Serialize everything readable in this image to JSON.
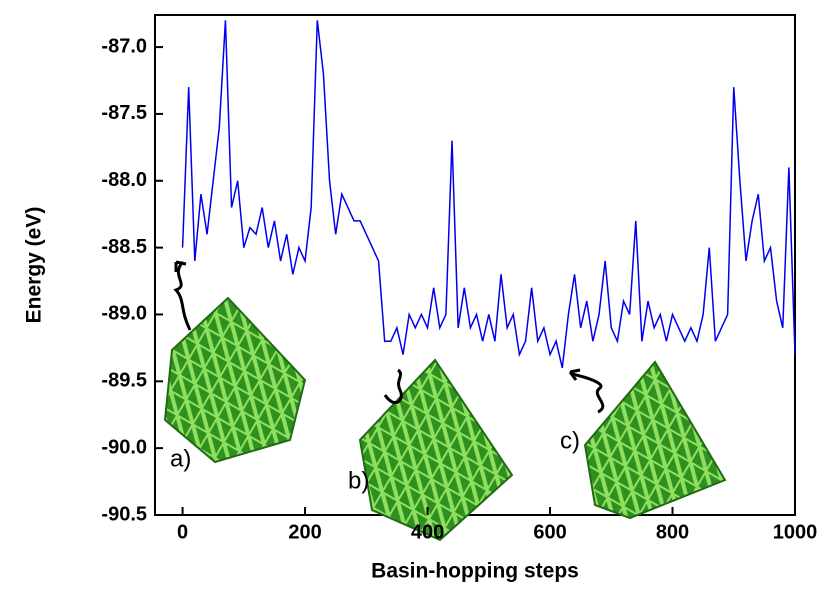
{
  "chart_data": {
    "type": "line",
    "x_label": "Basin-hopping steps",
    "y_label": "Energy (eV)",
    "x": [
      0,
      10,
      20,
      30,
      40,
      50,
      60,
      70,
      80,
      90,
      100,
      110,
      120,
      130,
      140,
      150,
      160,
      170,
      180,
      190,
      200,
      210,
      220,
      230,
      240,
      250,
      260,
      270,
      280,
      290,
      300,
      310,
      320,
      330,
      340,
      350,
      360,
      370,
      380,
      390,
      400,
      410,
      420,
      430,
      440,
      450,
      460,
      470,
      480,
      490,
      500,
      510,
      520,
      530,
      540,
      550,
      560,
      570,
      580,
      590,
      600,
      610,
      620,
      630,
      640,
      650,
      660,
      670,
      680,
      690,
      700,
      710,
      720,
      730,
      740,
      750,
      760,
      770,
      780,
      790,
      800,
      810,
      820,
      830,
      840,
      850,
      860,
      870,
      880,
      890,
      900,
      910,
      920,
      930,
      940,
      950,
      960,
      970,
      980,
      990,
      1000
    ],
    "series": [
      {
        "color": "#0000ee",
        "values": [
          -88.5,
          -87.3,
          -88.6,
          -88.1,
          -88.4,
          -88.0,
          -87.6,
          -86.8,
          -88.2,
          -88.0,
          -88.5,
          -88.35,
          -88.4,
          -88.2,
          -88.5,
          -88.3,
          -88.6,
          -88.4,
          -88.7,
          -88.5,
          -88.6,
          -88.2,
          -86.8,
          -87.2,
          -88.0,
          -88.4,
          -88.1,
          -88.2,
          -88.3,
          -88.3,
          -88.4,
          -88.5,
          -88.6,
          -89.2,
          -89.2,
          -89.1,
          -89.3,
          -89.0,
          -89.1,
          -89.0,
          -89.1,
          -88.8,
          -89.1,
          -89.0,
          -87.7,
          -89.1,
          -88.8,
          -89.1,
          -89.0,
          -89.2,
          -89.0,
          -89.2,
          -88.7,
          -89.1,
          -89.0,
          -89.3,
          -89.2,
          -88.8,
          -89.2,
          -89.1,
          -89.3,
          -89.2,
          -89.4,
          -89.0,
          -88.7,
          -89.1,
          -88.9,
          -89.2,
          -89.0,
          -88.6,
          -89.1,
          -89.2,
          -88.9,
          -89.0,
          -88.3,
          -89.2,
          -88.9,
          -89.1,
          -89.0,
          -89.2,
          -89.0,
          -89.1,
          -89.2,
          -89.1,
          -89.2,
          -89.0,
          -88.5,
          -89.2,
          -89.1,
          -89.0,
          -87.3,
          -88.0,
          -88.6,
          -88.3,
          -88.1,
          -88.6,
          -88.5,
          -88.9,
          -89.1,
          -87.9,
          -89.3
        ]
      }
    ],
    "xlim": [
      -45,
      1000
    ],
    "xticks": [
      0,
      200,
      400,
      600,
      800,
      1000
    ],
    "ylim": [
      -90.5,
      -86.76
    ],
    "yticks": [
      {
        "value": -90.5,
        "label": "-90.5"
      },
      {
        "value": -90.0,
        "label": "-90.0"
      },
      {
        "value": -89.5,
        "label": "-89.5"
      },
      {
        "value": -89.0,
        "label": "-89.0"
      },
      {
        "value": -88.5,
        "label": "-88.5"
      },
      {
        "value": -88.0,
        "label": "-88.0"
      },
      {
        "value": -87.5,
        "label": "-87.5"
      },
      {
        "value": -87.0,
        "label": "-87.0"
      }
    ],
    "annotations": [
      "a)",
      "b)",
      "c)"
    ]
  }
}
